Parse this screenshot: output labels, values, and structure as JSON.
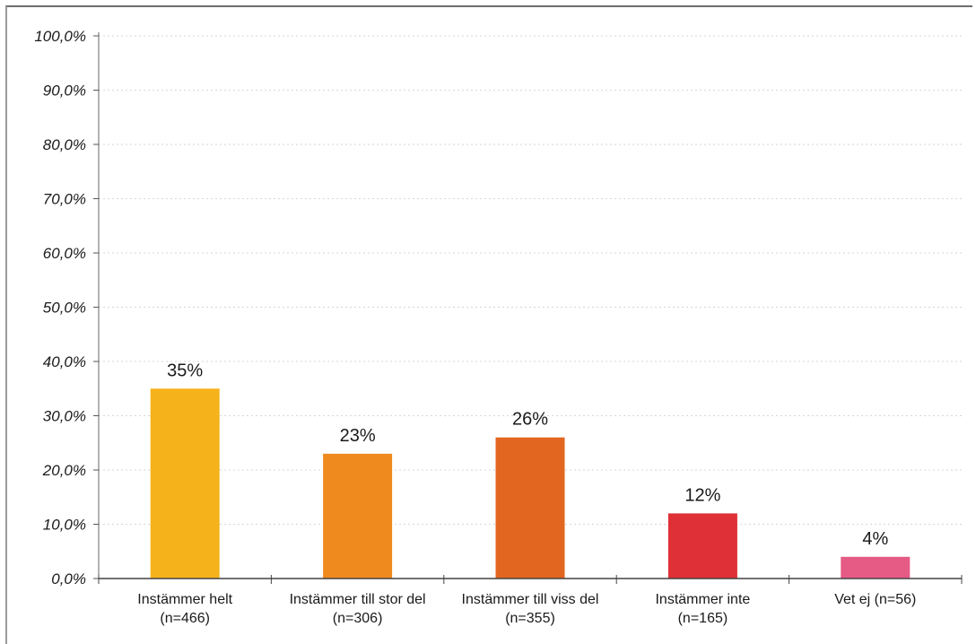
{
  "chart_data": {
    "type": "bar",
    "categories": [
      [
        "Instämmer helt",
        "(n=466)"
      ],
      [
        "Instämmer till stor del",
        "(n=306)"
      ],
      [
        "Instämmer till viss del",
        "(n=355)"
      ],
      [
        "Instämmer inte",
        "(n=165)"
      ],
      [
        "Vet ej  (n=56)"
      ]
    ],
    "values": [
      35,
      23,
      26,
      12,
      4
    ],
    "data_labels": [
      "35%",
      "23%",
      "26%",
      "12%",
      "4%"
    ],
    "colors": [
      "#f6b21b",
      "#ef8a1f",
      "#e2661f",
      "#de3036",
      "#e65a86"
    ],
    "yticks": [
      "0,0%",
      "10,0%",
      "20,0%",
      "30,0%",
      "40,0%",
      "50,0%",
      "60,0%",
      "70,0%",
      "80,0%",
      "90,0%",
      "100,0%"
    ],
    "ylim": [
      0,
      100
    ],
    "grid": true,
    "legend": "none",
    "title": "",
    "xlabel": "",
    "ylabel": ""
  }
}
